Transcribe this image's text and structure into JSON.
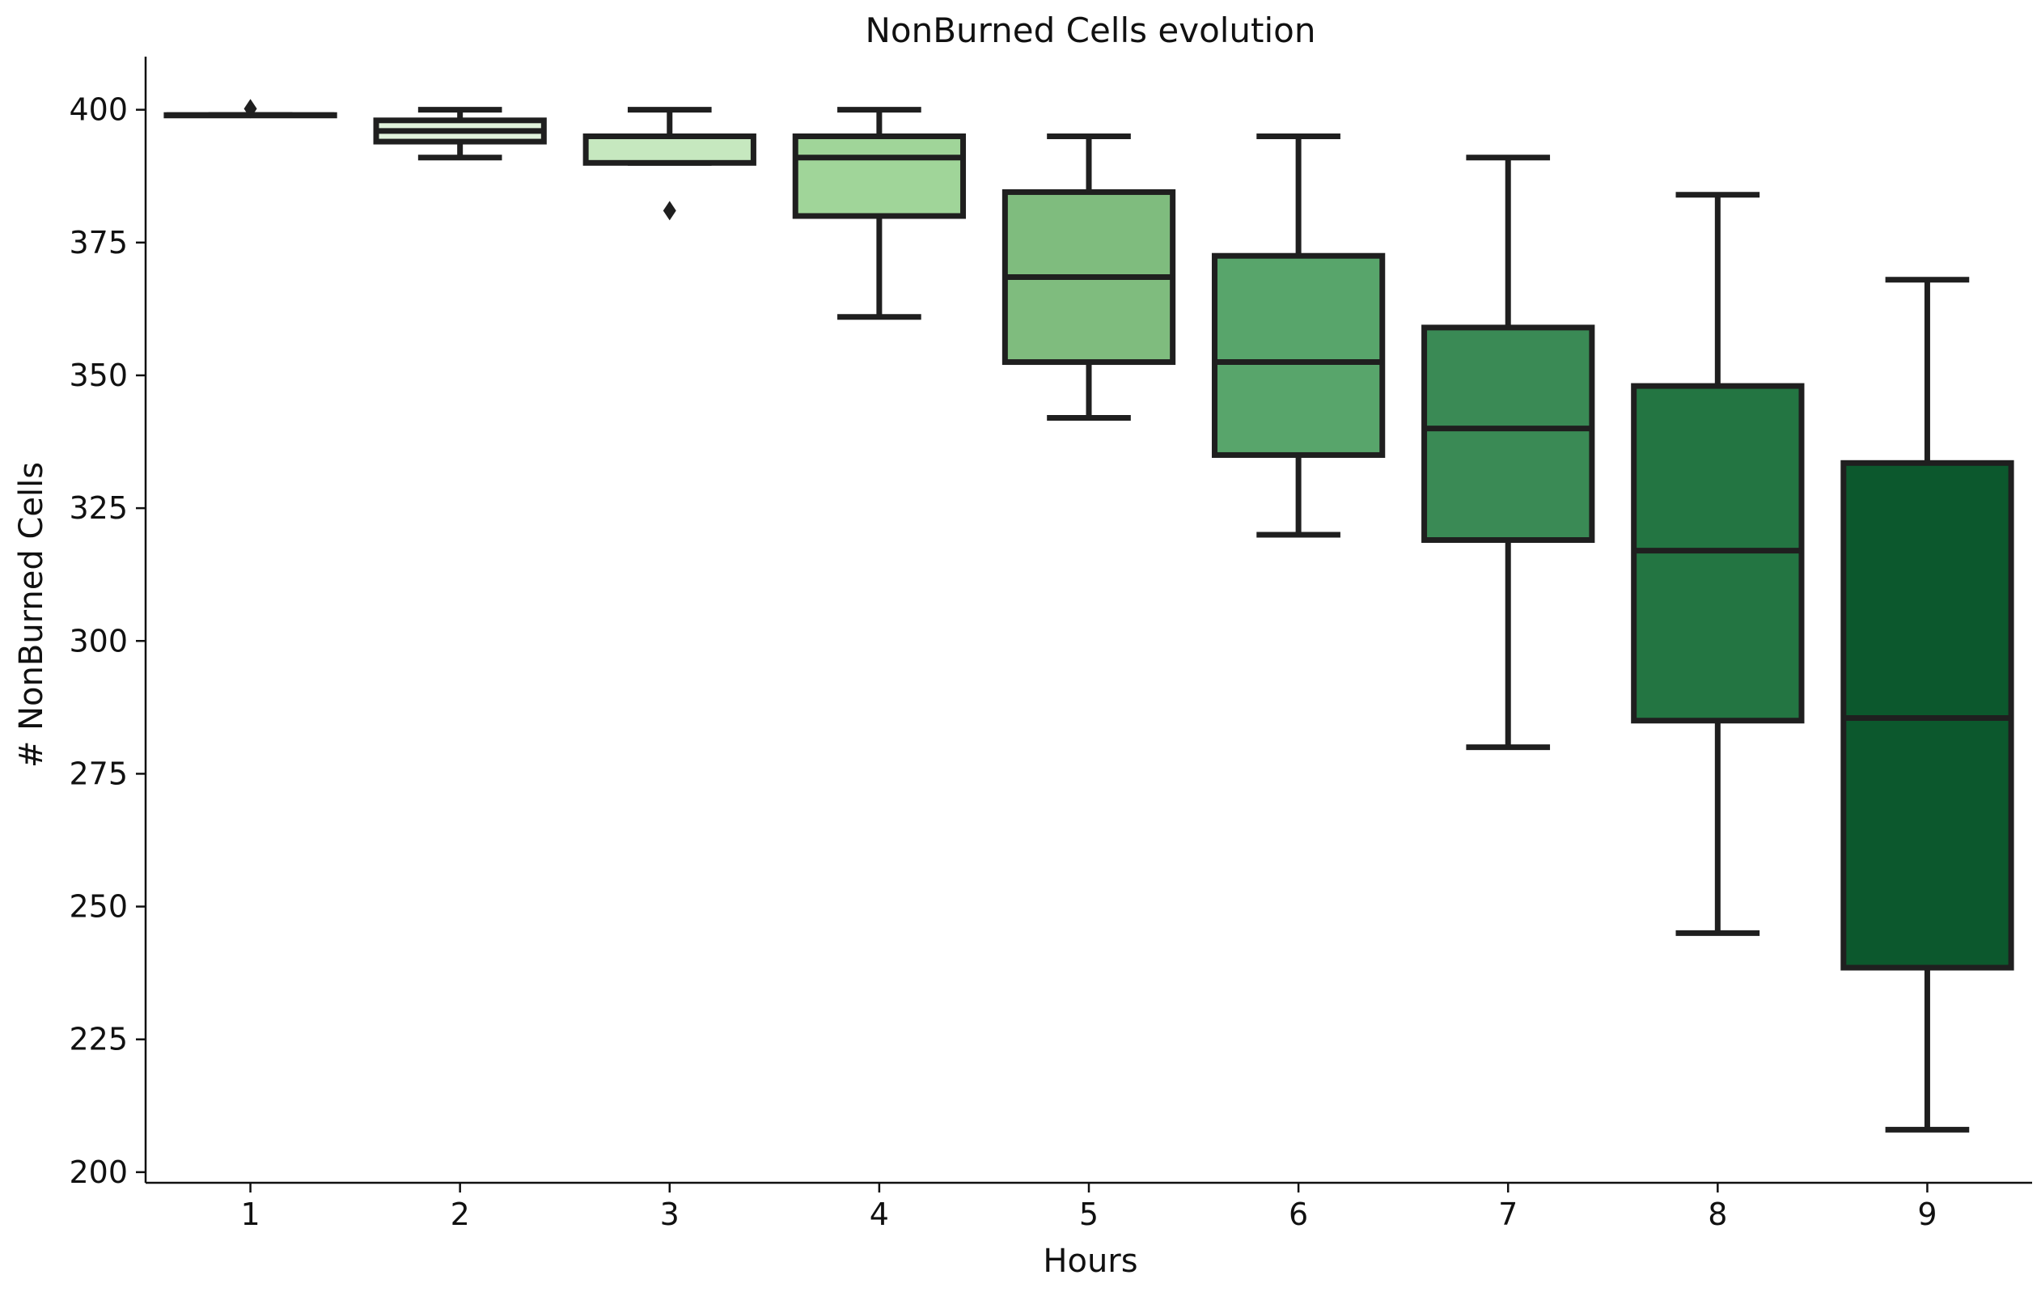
{
  "chart_data": {
    "type": "box",
    "title": "NonBurned Cells evolution",
    "xlabel": "Hours",
    "ylabel": "# NonBurned Cells",
    "ylim": [
      198,
      410
    ],
    "yticks": [
      200,
      225,
      250,
      275,
      300,
      325,
      350,
      375,
      400
    ],
    "grid": false,
    "categories": [
      "1",
      "2",
      "3",
      "4",
      "5",
      "6",
      "7",
      "8",
      "9"
    ],
    "boxes": [
      {
        "category": "1",
        "whisker_low": 399,
        "q1": 399,
        "median": 399,
        "q3": 399,
        "whisker_high": 399,
        "outliers": [
          400.2
        ],
        "color": "#f7fcf5"
      },
      {
        "category": "2",
        "whisker_low": 391,
        "q1": 394,
        "median": 396,
        "q3": 398,
        "whisker_high": 400,
        "outliers": [],
        "color": "#e1f3dc"
      },
      {
        "category": "3",
        "whisker_low": 390,
        "q1": 390,
        "median": 395,
        "q3": 395,
        "whisker_high": 400,
        "outliers": [
          381
        ],
        "color": "#c6e8bf"
      },
      {
        "category": "4",
        "whisker_low": 361,
        "q1": 380,
        "median": 391,
        "q3": 395,
        "whisker_high": 400,
        "outliers": [],
        "color": "#a0d599"
      },
      {
        "category": "5",
        "whisker_low": 342,
        "q1": 352.5,
        "median": 368.5,
        "q3": 384.5,
        "whisker_high": 395,
        "outliers": [],
        "color": "#7fbc7e"
      },
      {
        "category": "6",
        "whisker_low": 320,
        "q1": 335,
        "median": 352.5,
        "q3": 372.5,
        "whisker_high": 395,
        "outliers": [],
        "color": "#58a56b"
      },
      {
        "category": "7",
        "whisker_low": 280,
        "q1": 319,
        "median": 340,
        "q3": 359,
        "whisker_high": 391,
        "outliers": [],
        "color": "#3a8a55"
      },
      {
        "category": "8",
        "whisker_low": 245,
        "q1": 285,
        "median": 317,
        "q3": 348,
        "whisker_high": 384,
        "outliers": [],
        "color": "#237542"
      },
      {
        "category": "9",
        "whisker_low": 208,
        "q1": 238.5,
        "median": 285.5,
        "q3": 333.5,
        "whisker_high": 368,
        "outliers": [],
        "color": "#0c582d"
      }
    ]
  },
  "colors": {
    "edge": "#1f1f1f",
    "axis": "#111111"
  }
}
